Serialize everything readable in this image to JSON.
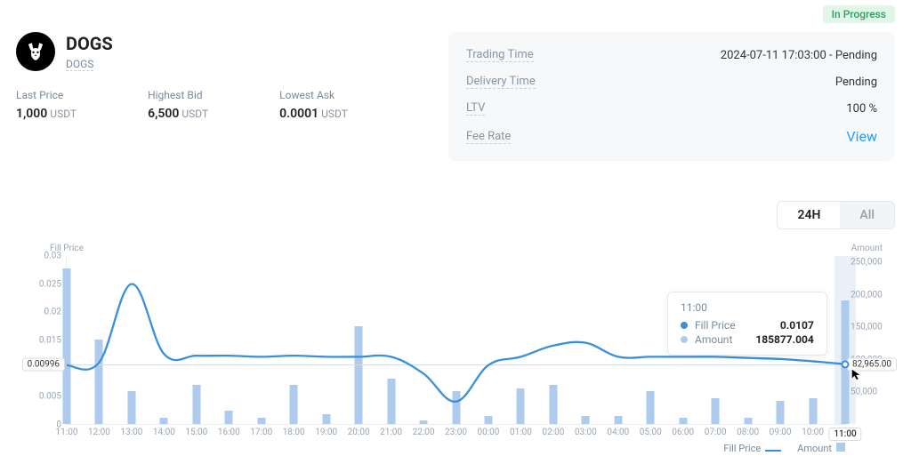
{
  "status_badge": "In Progress",
  "asset": {
    "name": "DOGS",
    "subtitle": "DOGS"
  },
  "stats": {
    "last_price": {
      "label": "Last Price",
      "value": "1,000",
      "unit": "USDT"
    },
    "highest_bid": {
      "label": "Highest Bid",
      "value": "6,500",
      "unit": "USDT"
    },
    "lowest_ask": {
      "label": "Lowest Ask",
      "value": "0.0001",
      "unit": "USDT"
    }
  },
  "info_card": {
    "trading_time": {
      "label": "Trading Time",
      "value": "2024-07-11 17:03:00 - Pending"
    },
    "delivery_time": {
      "label": "Delivery Time",
      "value": "Pending"
    },
    "ltv": {
      "label": "LTV",
      "value": "100 %"
    },
    "fee_rate": {
      "label": "Fee Rate",
      "value": "View"
    }
  },
  "time_toggle": {
    "opt1": "24H",
    "opt2": "All",
    "active": 0
  },
  "chart": {
    "type": "line+bar",
    "left_axis_title": "Fill Price",
    "right_axis_title": "Amount",
    "line_color": "#3b8fd9",
    "bar_color": "#aecbee",
    "background_color": "#ffffff",
    "grid_color": "#e9edf2",
    "ref_line_color": "#d6dde5",
    "y_left_ticks": [
      0,
      0.005,
      0.01,
      0.015,
      0.02,
      0.025,
      0.03
    ],
    "y_left_tick_labels": [
      "0",
      "0.005",
      "0.01",
      "0.015",
      "0.02",
      "0.025",
      "0.03"
    ],
    "y_left_lim": [
      0,
      0.03
    ],
    "y_right_ticks": [
      50000,
      100000,
      150000,
      200000,
      250000
    ],
    "y_right_tick_labels": [
      "50,000",
      "100,000",
      "150,000",
      "200,000",
      "250,000"
    ],
    "y_right_lim": [
      0,
      260000
    ],
    "x_labels": [
      "11:00",
      "12:00",
      "13:00",
      "14:00",
      "15:00",
      "16:00",
      "17:00",
      "18:00",
      "19:00",
      "20:00",
      "21:00",
      "22:00",
      "23:00",
      "00:00",
      "01:00",
      "02:00",
      "03:00",
      "04:00",
      "05:00",
      "06:00",
      "07:00",
      "08:00",
      "09:00",
      "10:00",
      "11:00"
    ],
    "line_values": [
      0.0105,
      0.011,
      0.025,
      0.0125,
      0.0122,
      0.0122,
      0.012,
      0.0122,
      0.012,
      0.012,
      0.012,
      0.009,
      0.004,
      0.0105,
      0.012,
      0.014,
      0.0145,
      0.012,
      0.012,
      0.012,
      0.012,
      0.0118,
      0.0116,
      0.0112,
      0.0107
    ],
    "bar_values": [
      240000,
      130000,
      50000,
      10000,
      60000,
      20000,
      10000,
      60000,
      15000,
      150000,
      70000,
      5000,
      50000,
      12000,
      55000,
      60000,
      12000,
      12000,
      50000,
      10000,
      40000,
      10000,
      35000,
      40000,
      190000
    ],
    "ref_left_label": "0.00996",
    "end_right_label": "82,965.00",
    "highlight_index": 24,
    "legend": {
      "line": "Fill Price",
      "bar": "Amount"
    },
    "tooltip": {
      "time": "11:00",
      "rows": [
        {
          "color": "#3b8fd9",
          "label": "Fill Price",
          "value": "0.0107"
        },
        {
          "color": "#aecbee",
          "label": "Amount",
          "value": "185877.004"
        }
      ]
    }
  }
}
